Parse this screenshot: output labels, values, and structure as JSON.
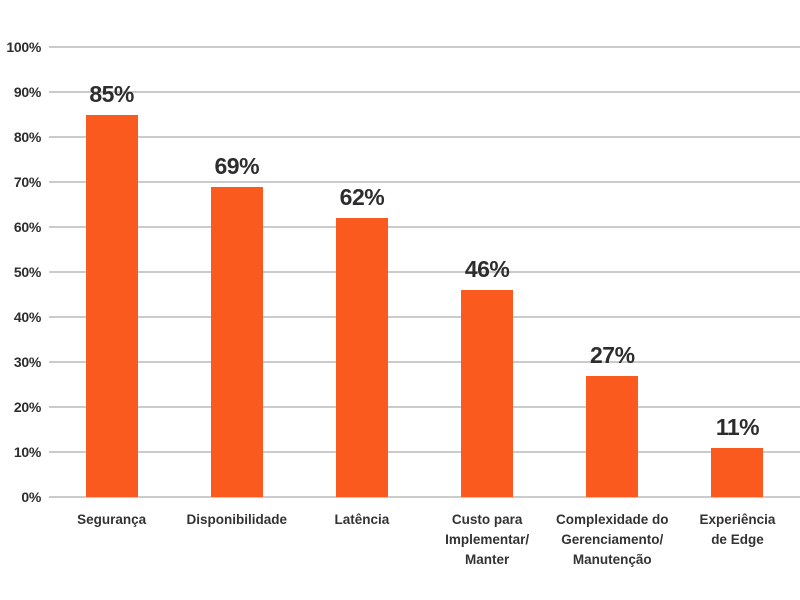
{
  "chart_data": {
    "type": "bar",
    "title": "",
    "xlabel": "",
    "ylabel": "",
    "categories": [
      "Segurança",
      "Disponibilidade",
      "Latência",
      "Custo para Implementar/Manter",
      "Complexidade do Gerenciamento/Manutenção",
      "Experiência de Edge"
    ],
    "category_lines": [
      [
        "Segurança"
      ],
      [
        "Disponibilidade"
      ],
      [
        "Latência"
      ],
      [
        "Custo para",
        "Implementar/",
        "Manter"
      ],
      [
        "Complexidade do",
        "Gerenciamento/",
        "Manutenção"
      ],
      [
        "Experiência",
        "de Edge"
      ]
    ],
    "values": [
      85,
      69,
      62,
      46,
      27,
      11
    ],
    "value_labels": [
      "85%",
      "69%",
      "62%",
      "46%",
      "27%",
      "11%"
    ],
    "ylim": [
      0,
      100
    ],
    "ytick_step": 10,
    "yticks": [
      {
        "value": 0,
        "label": "0%"
      },
      {
        "value": 10,
        "label": "10%"
      },
      {
        "value": 20,
        "label": "20%"
      },
      {
        "value": 30,
        "label": "30%"
      },
      {
        "value": 40,
        "label": "40%"
      },
      {
        "value": 50,
        "label": "50%"
      },
      {
        "value": 60,
        "label": "60%"
      },
      {
        "value": 70,
        "label": "70%"
      },
      {
        "value": 80,
        "label": "80%"
      },
      {
        "value": 90,
        "label": "90%"
      },
      {
        "value": 100,
        "label": "100%"
      }
    ],
    "grid": "horizontal",
    "legend": "none",
    "colors": {
      "bar": "#FA5A1E",
      "gridline": "#CBCBCB",
      "text": "#2D2D2D",
      "category_text": "#333333",
      "background": "#FFFFFF"
    }
  }
}
